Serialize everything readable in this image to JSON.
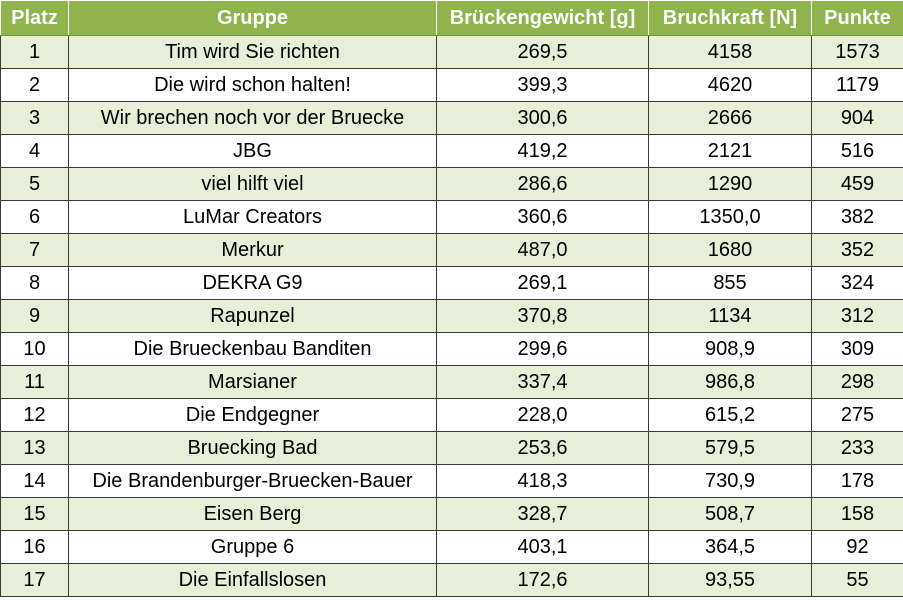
{
  "table": {
    "headers": {
      "platz": "Platz",
      "gruppe": "Gruppe",
      "gewicht": "Brückengewicht [g]",
      "kraft": "Bruchkraft [N]",
      "punkte": "Punkte"
    },
    "rows": [
      {
        "platz": "1",
        "gruppe": "Tim wird Sie richten",
        "gewicht": "269,5",
        "kraft": "4158",
        "punkte": "1573"
      },
      {
        "platz": "2",
        "gruppe": "Die wird schon halten!",
        "gewicht": "399,3",
        "kraft": "4620",
        "punkte": "1179"
      },
      {
        "platz": "3",
        "gruppe": "Wir brechen noch vor der Bruecke",
        "gewicht": "300,6",
        "kraft": "2666",
        "punkte": "904"
      },
      {
        "platz": "4",
        "gruppe": "JBG",
        "gewicht": "419,2",
        "kraft": "2121",
        "punkte": "516"
      },
      {
        "platz": "5",
        "gruppe": "viel hilft viel",
        "gewicht": "286,6",
        "kraft": "1290",
        "punkte": "459"
      },
      {
        "platz": "6",
        "gruppe": "LuMar Creators",
        "gewicht": "360,6",
        "kraft": "1350,0",
        "punkte": "382"
      },
      {
        "platz": "7",
        "gruppe": "Merkur",
        "gewicht": "487,0",
        "kraft": "1680",
        "punkte": "352"
      },
      {
        "platz": "8",
        "gruppe": "DEKRA G9",
        "gewicht": "269,1",
        "kraft": "855",
        "punkte": "324"
      },
      {
        "platz": "9",
        "gruppe": "Rapunzel",
        "gewicht": "370,8",
        "kraft": "1134",
        "punkte": "312"
      },
      {
        "platz": "10",
        "gruppe": "Die Brueckenbau Banditen",
        "gewicht": "299,6",
        "kraft": "908,9",
        "punkte": "309"
      },
      {
        "platz": "11",
        "gruppe": "Marsianer",
        "gewicht": "337,4",
        "kraft": "986,8",
        "punkte": "298"
      },
      {
        "platz": "12",
        "gruppe": "Die Endgegner",
        "gewicht": "228,0",
        "kraft": "615,2",
        "punkte": "275"
      },
      {
        "platz": "13",
        "gruppe": "Bruecking Bad",
        "gewicht": "253,6",
        "kraft": "579,5",
        "punkte": "233"
      },
      {
        "platz": "14",
        "gruppe": "Die Brandenburger-Bruecken-Bauer",
        "gewicht": "418,3",
        "kraft": "730,9",
        "punkte": "178"
      },
      {
        "platz": "15",
        "gruppe": "Eisen Berg",
        "gewicht": "328,7",
        "kraft": "508,7",
        "punkte": "158"
      },
      {
        "platz": "16",
        "gruppe": "Gruppe 6",
        "gewicht": "403,1",
        "kraft": "364,5",
        "punkte": "92"
      },
      {
        "platz": "17",
        "gruppe": "Die Einfallslosen",
        "gewicht": "172,6",
        "kraft": "93,55",
        "punkte": "55"
      }
    ]
  },
  "colors": {
    "header_bg": "#8fb44d",
    "header_text": "#ffffff",
    "band_row": "#e7efd9",
    "plain_row": "#ffffff",
    "grid": "#3a3a3a"
  }
}
